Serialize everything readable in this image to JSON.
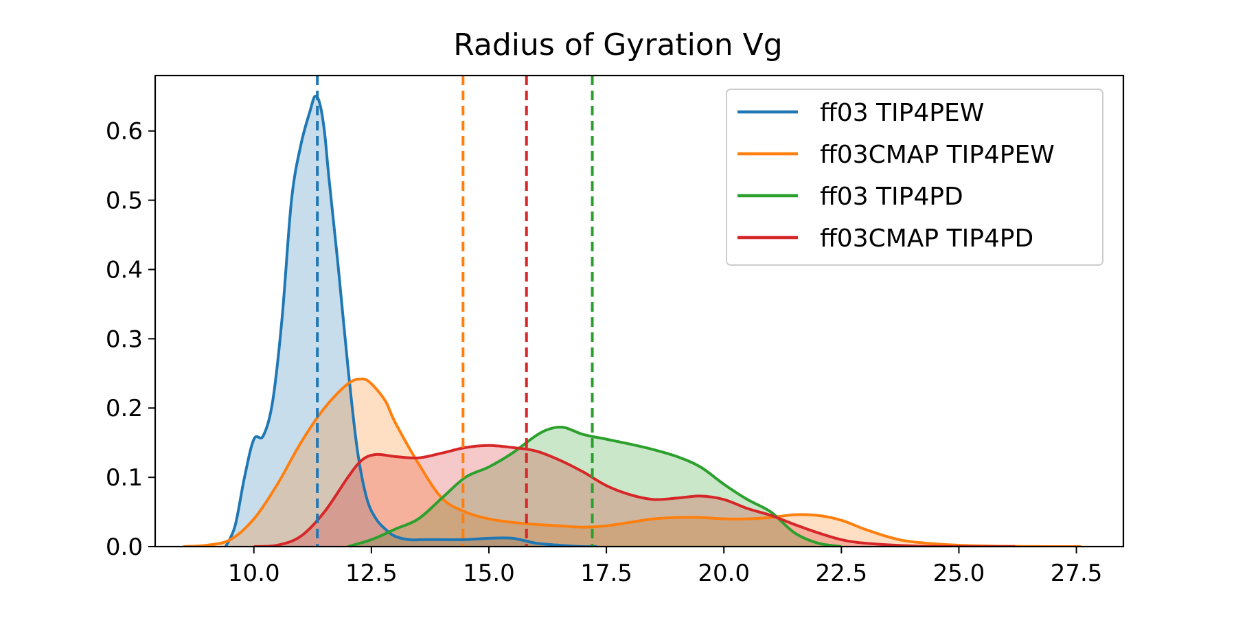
{
  "chart_data": {
    "type": "area",
    "title": "Radius of Gyration Vg",
    "xlabel": "",
    "ylabel": "",
    "xlim": [
      7.9,
      28.5
    ],
    "ylim": [
      0,
      0.68
    ],
    "x_ticks": [
      10.0,
      12.5,
      15.0,
      17.5,
      20.0,
      22.5,
      25.0,
      27.5
    ],
    "x_tick_labels": [
      "10.0",
      "12.5",
      "15.0",
      "17.5",
      "20.0",
      "22.5",
      "25.0",
      "27.5"
    ],
    "y_ticks": [
      0.0,
      0.1,
      0.2,
      0.3,
      0.4,
      0.5,
      0.6
    ],
    "y_tick_labels": [
      "0.0",
      "0.1",
      "0.2",
      "0.3",
      "0.4",
      "0.5",
      "0.6"
    ],
    "grid": false,
    "legend_position": "top-right",
    "series": [
      {
        "name": "ff03 TIP4PEW",
        "color": "#1f77b4",
        "mean": 11.35,
        "x": [
          9.4,
          9.6,
          9.8,
          10.0,
          10.2,
          10.4,
          10.6,
          10.8,
          11.0,
          11.2,
          11.3,
          11.4,
          11.5,
          11.6,
          11.8,
          12.0,
          12.2,
          12.4,
          12.6,
          12.8,
          13.0,
          13.3,
          13.6,
          14.0,
          14.5,
          15.0,
          15.5,
          16.0,
          16.5,
          17.0,
          17.3
        ],
        "y": [
          0.0,
          0.03,
          0.1,
          0.155,
          0.16,
          0.21,
          0.33,
          0.5,
          0.58,
          0.63,
          0.65,
          0.64,
          0.6,
          0.53,
          0.4,
          0.26,
          0.14,
          0.07,
          0.04,
          0.025,
          0.015,
          0.01,
          0.01,
          0.01,
          0.01,
          0.012,
          0.012,
          0.005,
          0.002,
          0.0,
          0.0
        ]
      },
      {
        "name": "ff03CMAP TIP4PEW",
        "color": "#ff7f0e",
        "mean": 14.45,
        "x": [
          8.5,
          9.0,
          9.5,
          10.0,
          10.5,
          11.0,
          11.5,
          12.0,
          12.3,
          12.5,
          12.8,
          13.0,
          13.5,
          14.0,
          14.5,
          15.0,
          15.5,
          16.0,
          16.5,
          17.0,
          17.5,
          18.0,
          18.5,
          19.0,
          19.5,
          20.0,
          20.5,
          21.0,
          21.5,
          22.0,
          22.5,
          23.0,
          23.5,
          24.0,
          25.0,
          26.0,
          27.0,
          27.6
        ],
        "y": [
          0.0,
          0.002,
          0.01,
          0.04,
          0.09,
          0.15,
          0.2,
          0.235,
          0.242,
          0.235,
          0.21,
          0.18,
          0.12,
          0.07,
          0.05,
          0.04,
          0.035,
          0.032,
          0.03,
          0.028,
          0.03,
          0.035,
          0.04,
          0.042,
          0.042,
          0.04,
          0.04,
          0.042,
          0.046,
          0.045,
          0.038,
          0.025,
          0.014,
          0.007,
          0.002,
          0.0005,
          0.0,
          0.0
        ]
      },
      {
        "name": "ff03 TIP4PD",
        "color": "#2ca02c",
        "mean": 17.2,
        "x": [
          12.0,
          12.5,
          13.0,
          13.5,
          14.0,
          14.5,
          15.0,
          15.5,
          16.0,
          16.3,
          16.6,
          17.0,
          17.5,
          18.0,
          18.5,
          19.0,
          19.5,
          20.0,
          20.5,
          21.0,
          21.5,
          22.0,
          22.5
        ],
        "y": [
          0.0,
          0.01,
          0.025,
          0.04,
          0.07,
          0.1,
          0.115,
          0.135,
          0.16,
          0.17,
          0.172,
          0.162,
          0.155,
          0.148,
          0.14,
          0.13,
          0.115,
          0.09,
          0.068,
          0.05,
          0.02,
          0.005,
          0.0
        ]
      },
      {
        "name": "ff03CMAP TIP4PD",
        "color": "#d62728",
        "mean": 15.8,
        "x": [
          10.0,
          10.5,
          11.0,
          11.5,
          12.0,
          12.3,
          12.6,
          13.0,
          13.5,
          14.0,
          14.5,
          15.0,
          15.5,
          16.0,
          16.5,
          17.0,
          17.5,
          18.0,
          18.5,
          19.0,
          19.5,
          20.0,
          20.5,
          21.0,
          21.5,
          22.0,
          22.5,
          23.0,
          24.0,
          25.0,
          26.2
        ],
        "y": [
          0.0,
          0.002,
          0.015,
          0.05,
          0.1,
          0.125,
          0.133,
          0.13,
          0.128,
          0.135,
          0.143,
          0.146,
          0.143,
          0.138,
          0.125,
          0.108,
          0.088,
          0.075,
          0.068,
          0.07,
          0.073,
          0.068,
          0.055,
          0.045,
          0.032,
          0.02,
          0.01,
          0.005,
          0.001,
          0.0,
          0.0
        ]
      }
    ]
  }
}
